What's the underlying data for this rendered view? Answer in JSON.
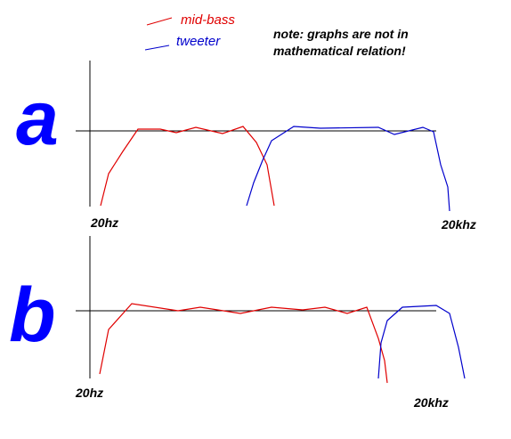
{
  "legend": {
    "mid_bass": "mid-bass",
    "tweeter": "tweeter"
  },
  "note": [
    "note: graphs are not in",
    "mathematical relation!"
  ],
  "panels": [
    {
      "label": "a",
      "low": "20hz",
      "high": "20khz"
    },
    {
      "label": "b",
      "low": "20hz",
      "high": "20khz"
    }
  ]
}
